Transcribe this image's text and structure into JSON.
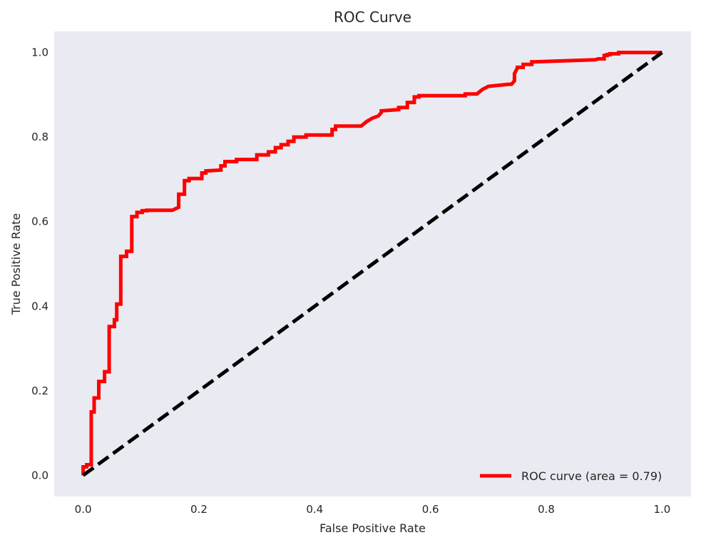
{
  "chart_data": {
    "type": "line",
    "title": "ROC Curve",
    "xlabel": "False Positive Rate",
    "ylabel": "True Positive Rate",
    "xlim": [
      -0.05,
      1.05
    ],
    "ylim": [
      -0.05,
      1.05
    ],
    "x_ticks": [
      0.0,
      0.2,
      0.4,
      0.6,
      0.8,
      1.0
    ],
    "x_tick_labels": [
      "0.0",
      "0.2",
      "0.4",
      "0.6",
      "0.8",
      "1.0"
    ],
    "y_ticks": [
      0.0,
      0.2,
      0.4,
      0.6,
      0.8,
      1.0
    ],
    "y_tick_labels": [
      "0.0",
      "0.2",
      "0.4",
      "0.6",
      "0.8",
      "1.0"
    ],
    "grid": false,
    "legend_position": "lower-right",
    "background_color": "#eaeaf2",
    "series": [
      {
        "name": "ROC curve (area = 0.79)",
        "color": "#ff0000",
        "style": "solid",
        "x": [
          0.0,
          0.0,
          0.006,
          0.006,
          0.014,
          0.014,
          0.019,
          0.019,
          0.027,
          0.027,
          0.037,
          0.037,
          0.045,
          0.045,
          0.054,
          0.054,
          0.058,
          0.058,
          0.065,
          0.065,
          0.075,
          0.075,
          0.084,
          0.084,
          0.093,
          0.093,
          0.102,
          0.102,
          0.11,
          0.11,
          0.118,
          0.118,
          0.154,
          0.165,
          0.165,
          0.175,
          0.175,
          0.183,
          0.183,
          0.205,
          0.205,
          0.212,
          0.212,
          0.238,
          0.238,
          0.245,
          0.245,
          0.265,
          0.265,
          0.3,
          0.3,
          0.32,
          0.32,
          0.332,
          0.332,
          0.342,
          0.342,
          0.354,
          0.354,
          0.364,
          0.364,
          0.385,
          0.385,
          0.43,
          0.43,
          0.436,
          0.436,
          0.48,
          0.49,
          0.5,
          0.51,
          0.515,
          0.515,
          0.545,
          0.545,
          0.56,
          0.56,
          0.572,
          0.572,
          0.58,
          0.58,
          0.59,
          0.66,
          0.66,
          0.68,
          0.69,
          0.7,
          0.735,
          0.74,
          0.745,
          0.745,
          0.75,
          0.75,
          0.76,
          0.76,
          0.775,
          0.775,
          0.78,
          0.78,
          0.885,
          0.89,
          0.9,
          0.9,
          0.905,
          0.905,
          0.91,
          0.91,
          0.925,
          0.925,
          0.935,
          1.0
        ],
        "y": [
          0.0,
          0.02,
          0.02,
          0.025,
          0.025,
          0.15,
          0.15,
          0.183,
          0.183,
          0.222,
          0.222,
          0.245,
          0.245,
          0.352,
          0.352,
          0.368,
          0.368,
          0.405,
          0.405,
          0.518,
          0.518,
          0.53,
          0.53,
          0.612,
          0.612,
          0.622,
          0.622,
          0.626,
          0.626,
          0.627,
          0.627,
          0.627,
          0.627,
          0.634,
          0.665,
          0.665,
          0.697,
          0.697,
          0.702,
          0.702,
          0.715,
          0.715,
          0.72,
          0.722,
          0.732,
          0.732,
          0.742,
          0.742,
          0.747,
          0.747,
          0.758,
          0.758,
          0.765,
          0.765,
          0.775,
          0.775,
          0.782,
          0.782,
          0.79,
          0.79,
          0.8,
          0.8,
          0.805,
          0.805,
          0.818,
          0.818,
          0.826,
          0.826,
          0.837,
          0.845,
          0.85,
          0.858,
          0.862,
          0.865,
          0.87,
          0.87,
          0.882,
          0.882,
          0.895,
          0.895,
          0.898,
          0.898,
          0.898,
          0.902,
          0.902,
          0.913,
          0.92,
          0.925,
          0.925,
          0.933,
          0.95,
          0.963,
          0.965,
          0.965,
          0.972,
          0.972,
          0.978,
          0.978,
          0.978,
          0.983,
          0.985,
          0.985,
          0.993,
          0.993,
          0.995,
          0.995,
          0.997,
          0.997,
          1.0,
          1.0,
          1.0
        ]
      },
      {
        "name": "",
        "color": "#000000",
        "style": "dashed",
        "x": [
          0.0,
          1.0
        ],
        "y": [
          0.0,
          1.0
        ]
      }
    ]
  }
}
